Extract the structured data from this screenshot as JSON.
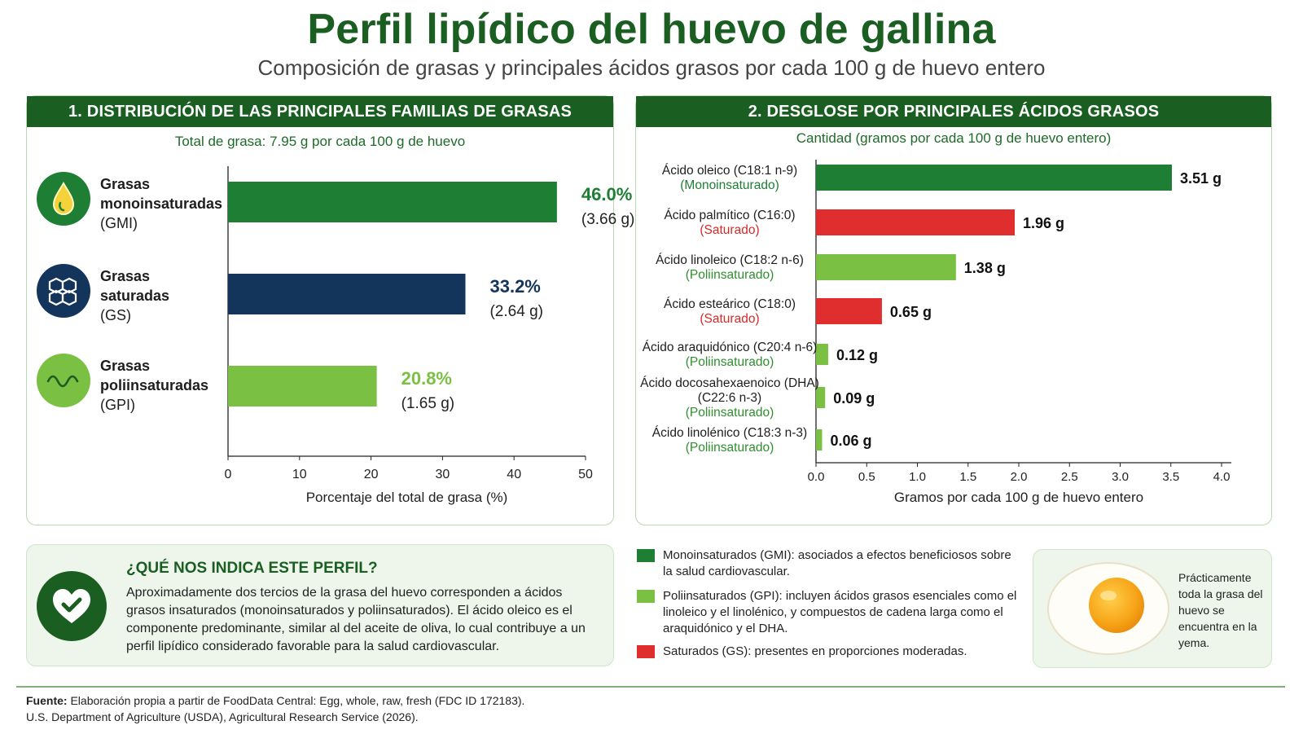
{
  "title": "Perfil lipídico del huevo de gallina",
  "subtitle": "Composición de grasas y principales ácidos grasos por cada 100 g de huevo entero",
  "colors": {
    "dark_green": "#1a5e22",
    "green": "#1e7e34",
    "light_green": "#7ac143",
    "navy": "#13355c",
    "red": "#e02e2e"
  },
  "panel1": {
    "header": "1. DISTRIBUCIÓN DE LAS PRINCIPALES FAMILIAS DE GRASAS",
    "total": "Total de grasa: 7.95 g por cada 100 g de huevo",
    "families": [
      {
        "name": "Grasas monoinsaturadas",
        "name_line1": "Grasas",
        "name_line2": "monoinsaturadas",
        "abbr": "(GMI)",
        "icon": "oil-drop-icon",
        "color": "#1e7e34"
      },
      {
        "name": "Grasas saturadas",
        "name_line1": "Grasas",
        "name_line2": "saturadas",
        "abbr": "(GS)",
        "icon": "molecule-icon",
        "color": "#13355c"
      },
      {
        "name": "Grasas poliinsaturadas",
        "name_line1": "Grasas",
        "name_line2": "poliinsaturadas",
        "abbr": "(GPI)",
        "icon": "wave-icon",
        "color": "#7ac143"
      }
    ]
  },
  "panel2": {
    "header": "2. DESGLOSE POR PRINCIPALES ÁCIDOS GRASOS",
    "subheader": "Cantidad (gramos por cada 100 g de huevo entero)"
  },
  "chart_data": [
    {
      "type": "bar",
      "orientation": "horizontal",
      "categories": [
        "Grasas monoinsaturadas (GMI)",
        "Grasas saturadas (GS)",
        "Grasas poliinsaturadas (GPI)"
      ],
      "values": [
        46.0,
        33.2,
        20.8
      ],
      "value_labels": [
        "46.0%",
        "33.2%",
        "20.8%"
      ],
      "grams_labels": [
        "(3.66 g)",
        "(2.64 g)",
        "(1.65 g)"
      ],
      "colors": [
        "#1e7e34",
        "#13355c",
        "#7ac143"
      ],
      "title": "1. DISTRIBUCIÓN DE LAS PRINCIPALES FAMILIAS DE GRASAS",
      "xlabel": "Porcentaje del total de grasa (%)",
      "xlim": [
        0,
        50
      ],
      "xticks": [
        0,
        10,
        20,
        30,
        40,
        50
      ],
      "grid": false
    },
    {
      "type": "bar",
      "orientation": "horizontal",
      "categories": [
        "Ácido oleico (C18:1 n-9)",
        "Ácido palmítico (C16:0)",
        "Ácido linoleico (C18:2 n-6)",
        "Ácido esteárico (C18:0)",
        "Ácido araquidónico (C20:4 n-6)",
        "Ácido docosahexaenoico (DHA) (C22:6 n-3)",
        "Ácido linolénico (C18:3 n-3)"
      ],
      "category_lines": [
        [
          "Ácido oleico (C18:1 n-9)"
        ],
        [
          "Ácido palmítico (C16:0)"
        ],
        [
          "Ácido linoleico (C18:2 n-6)"
        ],
        [
          "Ácido esteárico (C18:0)"
        ],
        [
          "Ácido araquidónico (C20:4 n-6)"
        ],
        [
          "Ácido docosahexaenoico (DHA)",
          "(C22:6 n-3)"
        ],
        [
          "Ácido linolénico (C18:3 n-3)"
        ]
      ],
      "types": [
        "(Monoinsaturado)",
        "(Saturado)",
        "(Poliinsaturado)",
        "(Saturado)",
        "(Poliinsaturado)",
        "(Poliinsaturado)",
        "(Poliinsaturado)"
      ],
      "values": [
        3.51,
        1.96,
        1.38,
        0.65,
        0.12,
        0.09,
        0.06
      ],
      "value_labels": [
        "3.51 g",
        "1.96 g",
        "1.38 g",
        "0.65 g",
        "0.12 g",
        "0.09 g",
        "0.06 g"
      ],
      "colors": [
        "#1e7e34",
        "#e02e2e",
        "#7ac143",
        "#e02e2e",
        "#7ac143",
        "#7ac143",
        "#7ac143"
      ],
      "type_colors": [
        "#1e7e34",
        "#d62a2a",
        "#2f8f2f",
        "#d62a2a",
        "#2f8f2f",
        "#2f8f2f",
        "#2f8f2f"
      ],
      "title": "2. DESGLOSE POR PRINCIPALES ÁCIDOS GRASOS",
      "xlabel": "Gramos por cada 100 g de huevo entero",
      "xlim": [
        0,
        4.0
      ],
      "xticks": [
        "0.0",
        "0.5",
        "1.0",
        "1.5",
        "2.0",
        "2.5",
        "3.0",
        "3.5",
        "4.0"
      ],
      "grid": false
    }
  ],
  "info": {
    "title": "¿QUÉ NOS INDICA ESTE PERFIL?",
    "text": "Aproximadamente dos tercios de la grasa del huevo corresponden a ácidos grasos insaturados (monoinsaturados y poliinsaturados). El ácido oleico es el componente predominante, similar al del aceite de oliva, lo cual contribuye a un perfil lipídico considerado favorable para la salud cardiovascular.",
    "icon": "heart-check-icon"
  },
  "legend": [
    {
      "color": "#1e7e34",
      "text": "Monoinsaturados (GMI): asociados a efectos beneficiosos sobre la salud cardiovascular."
    },
    {
      "color": "#7ac143",
      "text": "Poliinsaturados (GPI): incluyen ácidos grasos esenciales como el linoleico y el linolénico, y compuestos de cadena larga como el araquidónico y el DHA."
    },
    {
      "color": "#e02e2e",
      "text": "Saturados (GS): presentes en proporciones moderadas."
    }
  ],
  "egg": {
    "icon": "egg-yolk-icon",
    "text": "Prácticamente toda la grasa del huevo se encuentra en la yema."
  },
  "source": {
    "label": "Fuente:",
    "line1": "Elaboración propia a partir de FoodData Central: Egg, whole, raw, fresh (FDC ID 172183).",
    "line2": "U.S. Department of Agriculture (USDA), Agricultural Research Service (2026)."
  }
}
